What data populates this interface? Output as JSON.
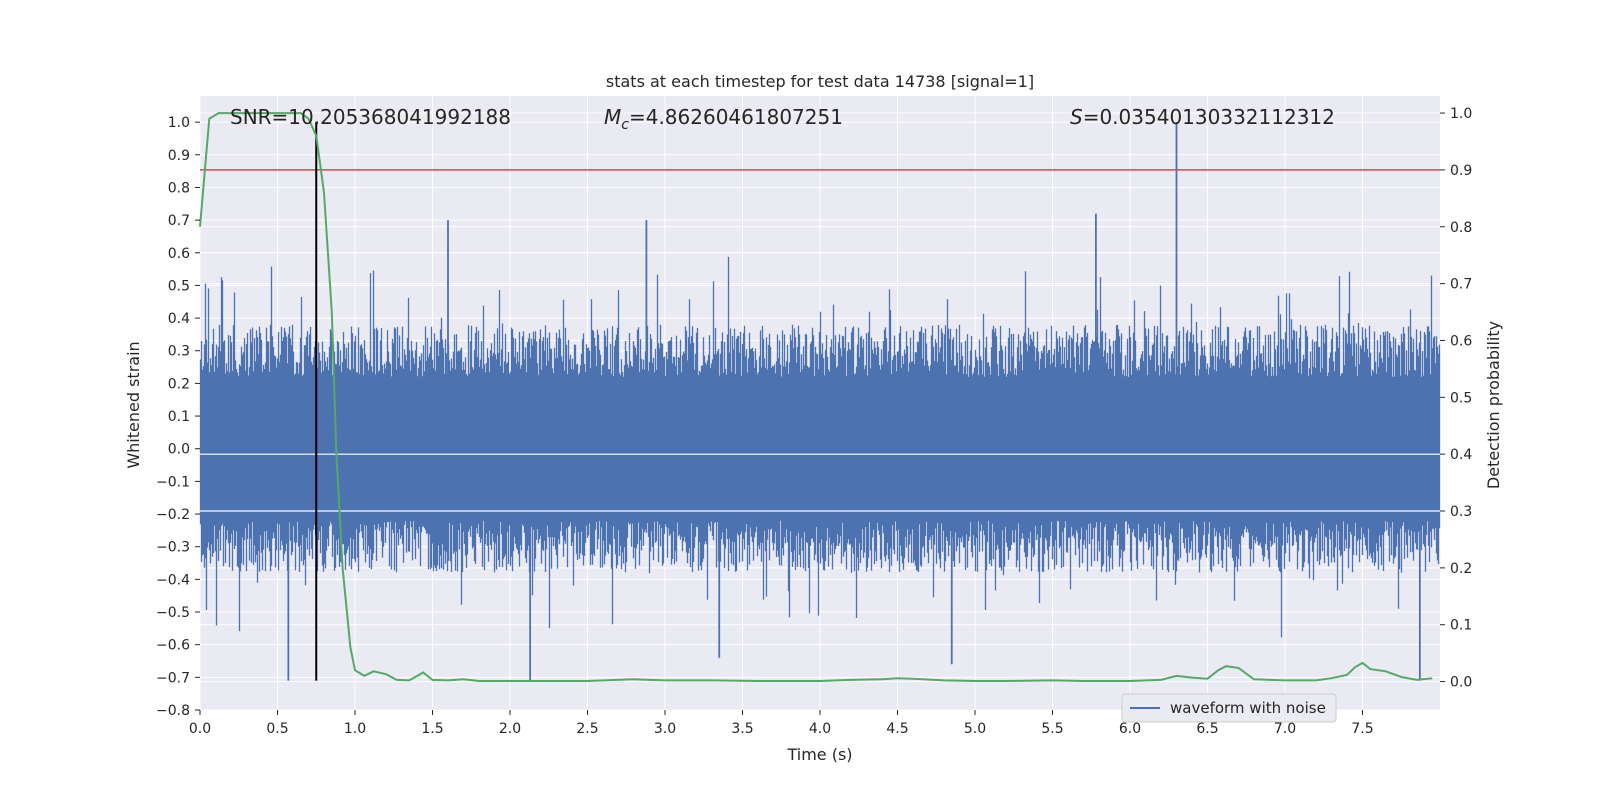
{
  "chart_data": {
    "type": "line",
    "title": "stats at each timestep for test data 14738 [signal=1]",
    "xlabel": "Time (s)",
    "ylabel": "Whitened strain",
    "y2label": "Detection probability",
    "xlim": [
      0.0,
      8.0
    ],
    "ylim": [
      -0.8,
      1.08
    ],
    "y2lim": [
      -0.05,
      1.03
    ],
    "xticks": [
      "0.0",
      "0.5",
      "1.0",
      "1.5",
      "2.0",
      "2.5",
      "3.0",
      "3.5",
      "4.0",
      "4.5",
      "5.0",
      "5.5",
      "6.0",
      "6.5",
      "7.0",
      "7.5"
    ],
    "yticks": [
      "−0.8",
      "−0.7",
      "−0.6",
      "−0.5",
      "−0.4",
      "−0.3",
      "−0.2",
      "−0.1",
      "0.0",
      "0.1",
      "0.2",
      "0.3",
      "0.4",
      "0.5",
      "0.6",
      "0.7",
      "0.8",
      "0.9",
      "1.0"
    ],
    "y2ticks": [
      "0.0",
      "0.1",
      "0.2",
      "0.3",
      "0.4",
      "0.5",
      "0.6",
      "0.7",
      "0.8",
      "0.9",
      "1.0"
    ],
    "annotations": {
      "snr": "SNR=10.205368041992188",
      "mc_symbol": "M",
      "mc_sub": "c",
      "mc_value": "=4.86260461807251",
      "s_symbol": "S",
      "s_value": "=0.03540130332112312"
    },
    "legend": {
      "label": "waveform with noise",
      "placement": "lower-right"
    },
    "grid": true,
    "colors": {
      "waveform": "#4c72b0",
      "probability": "#55a868",
      "threshold": "#c44e52",
      "marker": "#000000",
      "background": "#eaeaf2",
      "grid": "#ffffff"
    },
    "series": [
      {
        "name": "waveform with noise",
        "axis": "left",
        "description": "dense noise, upper envelope ~0.3-0.45 with spikes to 0.7, lower envelope ~-0.3 to -0.45 with spikes to -0.7",
        "spikes": [
          {
            "t": 6.3,
            "y": 1.0
          },
          {
            "t": 0.57,
            "y": -0.71
          },
          {
            "t": 2.13,
            "y": -0.71
          },
          {
            "t": 7.87,
            "y": -0.71
          },
          {
            "t": 5.78,
            "y": 0.72
          },
          {
            "t": 1.6,
            "y": 0.7
          },
          {
            "t": 2.88,
            "y": 0.7
          },
          {
            "t": 3.35,
            "y": -0.64
          },
          {
            "t": 4.85,
            "y": -0.66
          }
        ]
      },
      {
        "name": "detection probability",
        "axis": "right",
        "x": [
          0.0,
          0.06,
          0.12,
          0.2,
          0.3,
          0.4,
          0.5,
          0.6,
          0.65,
          0.7,
          0.75,
          0.8,
          0.85,
          0.88,
          0.92,
          0.97,
          1.0,
          1.06,
          1.12,
          1.2,
          1.27,
          1.35,
          1.44,
          1.5,
          1.6,
          1.7,
          1.8,
          2.0,
          2.5,
          2.8,
          3.0,
          3.3,
          3.6,
          4.0,
          4.2,
          4.4,
          4.5,
          4.6,
          4.8,
          5.0,
          5.2,
          5.5,
          5.7,
          6.0,
          6.2,
          6.3,
          6.4,
          6.5,
          6.57,
          6.62,
          6.7,
          6.8,
          7.0,
          7.2,
          7.3,
          7.4,
          7.45,
          7.5,
          7.55,
          7.65,
          7.75,
          7.85,
          7.95
        ],
        "y": [
          0.8,
          0.99,
          1.0,
          1.0,
          1.0,
          1.0,
          1.0,
          1.0,
          1.0,
          0.99,
          0.96,
          0.86,
          0.65,
          0.4,
          0.2,
          0.06,
          0.02,
          0.01,
          0.018,
          0.013,
          0.003,
          0.002,
          0.016,
          0.003,
          0.002,
          0.004,
          0.001,
          0.001,
          0.001,
          0.004,
          0.002,
          0.002,
          0.001,
          0.001,
          0.003,
          0.004,
          0.006,
          0.005,
          0.002,
          0.001,
          0.001,
          0.002,
          0.001,
          0.001,
          0.003,
          0.01,
          0.007,
          0.005,
          0.02,
          0.027,
          0.024,
          0.004,
          0.002,
          0.002,
          0.006,
          0.012,
          0.025,
          0.033,
          0.022,
          0.018,
          0.008,
          0.003,
          0.006
        ]
      },
      {
        "name": "threshold",
        "axis": "right",
        "type": "hline",
        "y": 0.9
      },
      {
        "name": "peak marker",
        "axis": "left",
        "type": "vline",
        "x": 0.75
      }
    ]
  }
}
